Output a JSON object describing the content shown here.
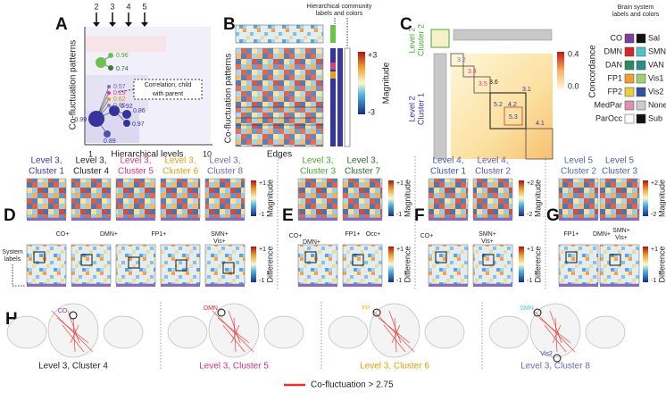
{
  "panel_labels": [
    "A",
    "B",
    "C",
    "D",
    "E",
    "F",
    "G",
    "H"
  ],
  "panel_a": {
    "level_ticks": [
      "2",
      "3",
      "4",
      "5"
    ],
    "y_label": "Co-fluctuation patterns",
    "x_label": "Hierarchical levels",
    "x_start": "1",
    "x_end": "10",
    "correlations": [
      "0.96",
      "0.74",
      "0.57",
      "0.29",
      "0.62",
      "0.60",
      "0.92",
      "0.86",
      "0.99",
      "0.97",
      "0.89"
    ],
    "annotation": [
      "Correlation, child",
      "with parent"
    ]
  },
  "panel_b": {
    "header": [
      "Hierarchical community",
      "labels and colors"
    ],
    "y_label": "Co-fluctuation patterns",
    "x_label": "Edges",
    "colorbar_ticks": [
      "+3",
      "-3"
    ],
    "colorbar_label": "Magnitude"
  },
  "panel_c": {
    "header": [
      "Brain system",
      "labels and colors"
    ],
    "cluster2": [
      "Level 2",
      "Cluster 2"
    ],
    "cluster1": [
      "Level 2",
      "Cluster 1"
    ],
    "block_labels": [
      "3.1",
      "3.2",
      "3.4",
      "3.5",
      "3.6",
      "4.1",
      "4.2",
      "5.2",
      "5.3"
    ],
    "colorbar_ticks": [
      "0.4",
      "0.0"
    ],
    "colorbar_label": "Concordance",
    "systems": [
      [
        "CO",
        "Sal"
      ],
      [
        "DMN",
        "SMN"
      ],
      [
        "DAN",
        "VAN"
      ],
      [
        "FP1",
        "Vis1"
      ],
      [
        "FP2",
        "Vis2"
      ],
      [
        "MedPar",
        "None"
      ],
      [
        "ParOcc",
        "Sub"
      ]
    ]
  },
  "panel_d": {
    "columns": [
      [
        "Level 3,",
        "Cluster 1"
      ],
      [
        "Level 3,",
        "Cluster 4"
      ],
      [
        "Level 3,",
        "Cluster 5"
      ],
      [
        "Level 3,",
        "Cluster 6"
      ],
      [
        "Level 3,",
        "Cluster 8"
      ]
    ],
    "magnitude_ticks": [
      "+1",
      "-1"
    ],
    "magnitude_label": "Magnitude",
    "difference_ticks": [
      "+1",
      "-1"
    ],
    "difference_label": "Difference",
    "annotations": [
      "CO+",
      "DMN+",
      "FP1+",
      "SMN+",
      "Vis+"
    ],
    "system_labels": [
      "System",
      "labels"
    ]
  },
  "panel_e": {
    "columns": [
      [
        "Level 3,",
        "Cluster 3"
      ],
      [
        "Level 3,",
        "Cluster 7"
      ]
    ],
    "magnitude_ticks": [
      "+1",
      "-1"
    ],
    "magnitude_label": "Magnitude",
    "difference_ticks": [
      "+1",
      "-1"
    ],
    "difference_label": "Difference",
    "annotations": [
      "CO+",
      "DMN+",
      "FP1+",
      "Occ+"
    ]
  },
  "panel_f": {
    "columns": [
      [
        "Level 4,",
        "Cluster 1"
      ],
      [
        "Level 4,",
        "Cluster 2"
      ]
    ],
    "magnitude_ticks": [
      "+2",
      "-2"
    ],
    "magnitude_label": "Magnitude",
    "difference_ticks": [
      "+1",
      "-1"
    ],
    "difference_label": "Difference",
    "annotations": [
      "CO+",
      "SMN+",
      "Vis+"
    ]
  },
  "panel_g": {
    "columns": [
      [
        "Level 5",
        "Cluster 2"
      ],
      [
        "Level 5",
        "Cluster 3"
      ]
    ],
    "magnitude_ticks": [
      "+2",
      "-2"
    ],
    "magnitude_label": "Magnitude",
    "difference_ticks": [
      "+1",
      "-1"
    ],
    "difference_label": "Difference",
    "annotations": [
      "FP1+",
      "DMN+",
      "SMN+",
      "Vis+"
    ]
  },
  "panel_h": {
    "system_tags": [
      "CO",
      "DMN",
      "FP",
      "SMN",
      "Vis2"
    ],
    "captions": [
      "Level 3, Cluster 4",
      "Level 3, Cluster 5",
      "Level 3, Cluster 6",
      "Level 3, Cluster 8"
    ],
    "legend": "Co-fluctuation > 2.75"
  }
}
